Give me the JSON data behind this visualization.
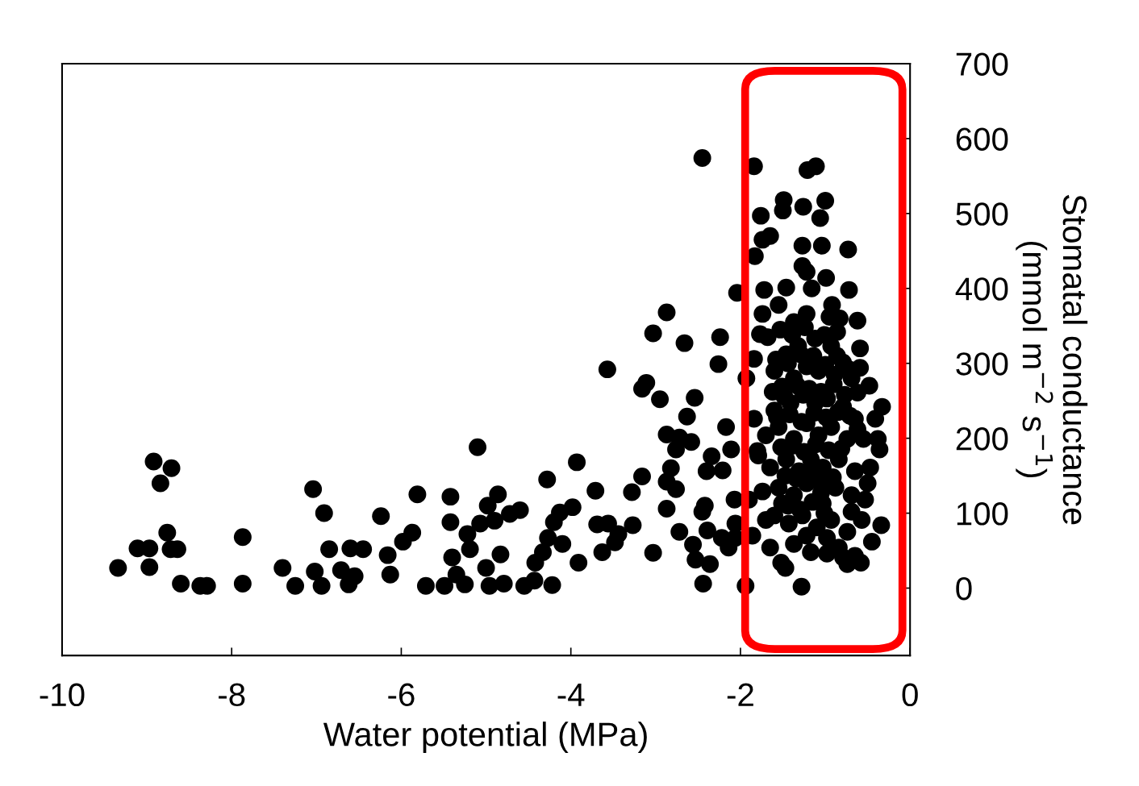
{
  "chart_data": {
    "type": "scatter",
    "xlabel": "Water potential (MPa)",
    "ylabel": "Stomatal conductance\n(mmol m$^{−2}$ s$^{−1}$)",
    "xlim": [
      -10,
      0
    ],
    "xticks": [
      -10,
      -8,
      -6,
      -4,
      -2,
      0
    ],
    "ylim": [
      -90,
      700
    ],
    "yticks": [
      0,
      100,
      200,
      300,
      400,
      500,
      600,
      700
    ],
    "grid": false,
    "marker": "circle",
    "series": [
      {
        "color": "#000000",
        "x": [
          -9.34,
          -9.11,
          -8.97,
          -8.97,
          -8.92,
          -8.71,
          -8.84,
          -8.76,
          -8.72,
          -8.64,
          -8.6,
          -8.37,
          -8.29,
          -7.87,
          -7.87,
          -7.4,
          -7.25,
          -7.04,
          -7.02,
          -6.94,
          -6.91,
          -6.85,
          -6.71,
          -6.62,
          -6.6,
          -6.55,
          -6.45,
          -6.24,
          -6.16,
          -6.13,
          -5.98,
          -5.87,
          -5.81,
          -5.71,
          -5.49,
          -5.42,
          -5.42,
          -5.4,
          -5.35,
          -5.25,
          -5.22,
          -5.19,
          -5.1,
          -5.07,
          -5.0,
          -4.98,
          -4.96,
          -4.9,
          -4.86,
          -4.83,
          -4.79,
          -4.72,
          -4.6,
          -4.55,
          -4.43,
          -4.42,
          -4.33,
          -4.28,
          -4.27,
          -4.22,
          -4.2,
          -4.13,
          -4.1,
          -3.98,
          -3.93,
          -3.91,
          -3.71,
          -3.69,
          -3.63,
          -3.57,
          -3.56,
          -3.48,
          -3.44,
          -3.28,
          -3.27,
          -3.16,
          -3.16,
          -3.11,
          -3.03,
          -3.03,
          -2.95,
          -2.87,
          -2.87,
          -2.87,
          -2.87,
          -2.82,
          -2.76,
          -2.76,
          -2.72,
          -2.72,
          -2.66,
          -2.63,
          -2.58,
          -2.56,
          -2.54,
          -2.53,
          -2.45,
          -2.45,
          -2.44,
          -2.42,
          -2.4,
          -2.39,
          -2.36,
          -2.34,
          -2.26,
          -2.24,
          -2.21,
          -2.22,
          -2.17,
          -2.14,
          -2.11,
          -2.07,
          -2.06,
          -2.04,
          -2.06,
          -1.94,
          -1.84,
          -1.21,
          -1.11,
          -1.49,
          -1.5,
          -1.26,
          -1.0,
          -1.76,
          -1.06,
          -1.65,
          -1.74,
          -1.83,
          -1.27,
          -1.04,
          -0.73,
          -1.27,
          -1.22,
          -0.99,
          -1.72,
          -1.46,
          -1.16,
          -0.72,
          -1.55,
          -0.92,
          -1.74,
          -1.22,
          -0.62,
          -1.77,
          -0.83,
          -0.59,
          -0.59,
          -0.62,
          -0.33,
          -0.41,
          -0.38,
          -0.36,
          -0.5,
          -0.47,
          -0.34,
          -0.45,
          -0.58,
          -0.79,
          -0.74,
          -0.98,
          -1.28,
          -1.65,
          -1.52,
          -1.47,
          -1.86,
          -1.9,
          -1.79,
          -1.84,
          -1.93,
          -1.84,
          -1.68,
          -1.37,
          -1.6,
          -1.46,
          -1.32,
          -1.12,
          -0.93,
          -0.79,
          -0.69,
          -1.51,
          -1.37,
          -1.22,
          -1.08,
          -0.89,
          -1.6,
          -1.41,
          -1.26,
          -1.12,
          -0.98,
          -0.79,
          -0.65,
          -1.7,
          -1.55,
          -1.37,
          -1.22,
          -1.08,
          -0.93,
          -0.74,
          -0.55,
          -1.65,
          -1.46,
          -1.31,
          -1.17,
          -1.03,
          -0.84,
          -0.65,
          -1.74,
          -1.55,
          -1.37,
          -1.22,
          -1.05,
          -0.88,
          -0.69,
          -0.53,
          -1.6,
          -1.43,
          -1.27,
          -1.1,
          -0.93,
          -0.74,
          -0.57,
          -1.37,
          -1.17,
          -0.98,
          -0.84,
          -0.65,
          -1.7,
          -1.22,
          -1.03,
          -0.69,
          -1.51,
          -1.53,
          -1.39,
          -1.24,
          -1.14,
          -1.01,
          -0.86,
          -1.58,
          -1.44,
          -1.29,
          -1.0,
          -0.86,
          -0.72,
          -1.62,
          -1.48,
          -1.33,
          -1.19,
          -1.05,
          -0.9,
          -0.77,
          -1.57,
          -1.42,
          -1.28,
          -1.13,
          -0.99,
          -0.85,
          -0.71,
          -1.52,
          -1.39,
          -1.25,
          -1.11,
          -0.96,
          -0.81,
          -1.47,
          -1.34,
          -1.2,
          -1.06,
          -0.91,
          -1.44,
          -1.3,
          -1.15,
          -1.01,
          -0.95,
          -1.8,
          -0.62,
          -0.48
        ],
        "values": [
          27,
          53,
          53,
          28,
          169,
          160,
          140,
          74,
          52,
          52,
          6,
          3,
          3,
          68,
          6,
          27,
          3,
          132,
          22,
          3,
          100,
          52,
          24,
          5,
          53,
          16,
          52,
          96,
          44,
          18,
          62,
          74,
          125,
          3,
          3,
          122,
          88,
          41,
          18,
          5,
          72,
          52,
          188,
          86,
          27,
          110,
          3,
          90,
          125,
          45,
          6,
          99,
          104,
          3,
          10,
          34,
          48,
          145,
          67,
          4,
          88,
          101,
          59,
          108,
          168,
          34,
          130,
          85,
          48,
          292,
          86,
          61,
          72,
          128,
          84,
          149,
          266,
          274,
          340,
          47,
          252,
          368,
          205,
          106,
          142,
          160,
          185,
          132,
          201,
          75,
          327,
          229,
          195,
          58,
          254,
          38,
          574,
          102,
          6,
          110,
          156,
          77,
          32,
          176,
          299,
          335,
          157,
          67,
          215,
          54,
          185,
          118,
          86,
          394,
          67,
          3,
          563,
          558,
          563,
          518,
          504,
          509,
          517,
          497,
          494,
          470,
          465,
          443,
          457,
          457,
          452,
          430,
          422,
          414,
          398,
          401,
          400,
          398,
          378,
          378,
          366,
          366,
          357,
          339,
          360,
          320,
          294,
          261,
          242,
          226,
          199,
          185,
          140,
          161,
          84,
          62,
          34,
          41,
          32,
          46,
          2,
          54,
          34,
          27,
          70,
          118,
          177,
          226,
          280,
          306,
          335,
          355,
          290,
          312,
          323,
          333,
          323,
          301,
          280,
          269,
          280,
          296,
          290,
          285,
          237,
          247,
          258,
          247,
          253,
          242,
          226,
          204,
          215,
          199,
          220,
          204,
          215,
          199,
          199,
          161,
          172,
          156,
          172,
          161,
          172,
          156,
          129,
          134,
          124,
          140,
          127,
          134,
          124,
          118,
          97,
          86,
          97,
          81,
          91,
          75,
          91,
          59,
          48,
          67,
          54,
          43,
          91,
          70,
          113,
          102,
          113,
          345,
          338,
          348,
          310,
          338,
          342,
          305,
          300,
          312,
          298,
          310,
          292,
          262,
          255,
          270,
          266,
          262,
          272,
          258,
          228,
          232,
          222,
          234,
          228,
          235,
          230,
          188,
          190,
          182,
          192,
          184,
          186,
          150,
          146,
          152,
          142,
          148,
          110,
          105,
          115,
          100,
          362,
          183,
          212,
          270
        ]
      }
    ]
  }
}
